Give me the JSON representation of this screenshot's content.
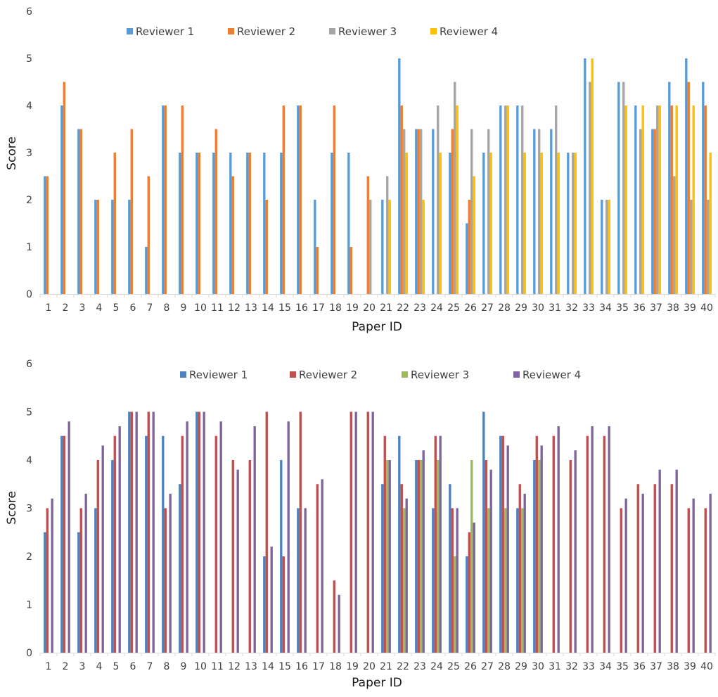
{
  "chart_data": [
    {
      "type": "bar",
      "xlabel": "Paper ID",
      "ylabel": "Score",
      "ylim": [
        0,
        6
      ],
      "yticks": [
        0,
        1,
        2,
        3,
        4,
        5,
        6
      ],
      "grid": false,
      "legend": "top",
      "categories": [
        "1",
        "2",
        "3",
        "4",
        "5",
        "6",
        "7",
        "8",
        "9",
        "10",
        "11",
        "12",
        "13",
        "14",
        "15",
        "16",
        "17",
        "18",
        "19",
        "20",
        "21",
        "22",
        "23",
        "24",
        "25",
        "26",
        "27",
        "28",
        "29",
        "30",
        "31",
        "32",
        "33",
        "34",
        "35",
        "36",
        "37",
        "38",
        "39",
        "40"
      ],
      "series": [
        {
          "name": "Reviewer 1",
          "color": "#5b9bd5",
          "values": [
            2.5,
            4,
            3.5,
            2,
            2,
            2,
            1,
            4,
            3,
            3,
            3,
            3,
            3,
            3,
            3,
            4,
            2,
            3,
            3,
            null,
            2,
            5,
            3.5,
            3.5,
            3,
            1.5,
            3,
            4,
            4,
            3.5,
            3.5,
            3,
            5,
            2,
            4.5,
            4,
            3.5,
            4.5,
            5,
            4.5
          ]
        },
        {
          "name": "Reviewer 2",
          "color": "#ed7d31",
          "values": [
            2.5,
            4.5,
            3.5,
            2,
            3,
            3.5,
            2.5,
            4,
            4,
            3,
            3.5,
            2.5,
            3,
            2,
            4,
            4,
            1,
            4,
            1,
            2.5,
            null,
            4,
            3.5,
            null,
            3.5,
            2,
            null,
            null,
            null,
            null,
            null,
            null,
            null,
            null,
            null,
            null,
            3.5,
            4,
            4.5,
            4
          ]
        },
        {
          "name": "Reviewer 3",
          "color": "#a5a5a5",
          "values": [
            null,
            null,
            null,
            null,
            null,
            null,
            null,
            null,
            null,
            null,
            null,
            null,
            null,
            null,
            null,
            null,
            null,
            null,
            null,
            2,
            2.5,
            3.5,
            3.5,
            4,
            4.5,
            3.5,
            3.5,
            4,
            4,
            3.5,
            4,
            3,
            4.5,
            2,
            4.5,
            3.5,
            4,
            2.5,
            2,
            2
          ]
        },
        {
          "name": "Reviewer 4",
          "color": "#ffc000",
          "values": [
            null,
            null,
            null,
            null,
            null,
            null,
            null,
            null,
            null,
            null,
            null,
            null,
            null,
            null,
            null,
            null,
            null,
            null,
            null,
            null,
            2,
            3,
            2,
            3,
            4,
            2.5,
            3,
            4,
            3,
            3,
            3,
            3,
            5,
            2,
            4,
            4,
            4,
            4,
            4,
            3
          ]
        }
      ]
    },
    {
      "type": "bar",
      "xlabel": "Paper ID",
      "ylabel": "Score",
      "ylim": [
        0,
        6
      ],
      "yticks": [
        0,
        1,
        2,
        3,
        4,
        5,
        6
      ],
      "grid": false,
      "legend": "top",
      "categories": [
        "1",
        "2",
        "3",
        "4",
        "5",
        "6",
        "7",
        "8",
        "9",
        "10",
        "11",
        "12",
        "13",
        "14",
        "15",
        "16",
        "17",
        "18",
        "19",
        "20",
        "21",
        "22",
        "23",
        "24",
        "25",
        "26",
        "27",
        "28",
        "29",
        "30",
        "31",
        "32",
        "33",
        "34",
        "35",
        "36",
        "37",
        "38",
        "39",
        "40"
      ],
      "series": [
        {
          "name": "Reviewer 1",
          "color": "#4f81bd",
          "values": [
            2.5,
            4.5,
            2.5,
            3,
            4,
            5,
            4.5,
            4.5,
            3.5,
            5,
            null,
            null,
            null,
            2,
            4,
            3,
            null,
            null,
            null,
            null,
            3.5,
            4.5,
            4,
            3,
            3.5,
            2,
            5,
            4.5,
            3,
            4,
            null,
            null,
            null,
            null,
            null,
            null,
            null,
            null,
            null,
            null
          ]
        },
        {
          "name": "Reviewer 2",
          "color": "#c0504d",
          "values": [
            3,
            4.5,
            3,
            4,
            4.5,
            5,
            5,
            3,
            4.5,
            5,
            4.5,
            4,
            4,
            5,
            2,
            5,
            3.5,
            1.5,
            5,
            5,
            4.5,
            3.5,
            4,
            4.5,
            3,
            2.5,
            4,
            4.5,
            3.5,
            4.5,
            4.5,
            4,
            4.5,
            4.5,
            3,
            3.5,
            3.5,
            3.5,
            3,
            3
          ]
        },
        {
          "name": "Reviewer 3",
          "color": "#9bbb59",
          "values": [
            null,
            null,
            null,
            null,
            null,
            null,
            null,
            null,
            null,
            null,
            null,
            null,
            null,
            null,
            null,
            null,
            null,
            null,
            null,
            null,
            4,
            3,
            4,
            4,
            2,
            4,
            3,
            3,
            3,
            4,
            null,
            null,
            null,
            null,
            null,
            null,
            null,
            null,
            null,
            null
          ]
        },
        {
          "name": "Reviewer 4",
          "color": "#8064a2",
          "values": [
            3.2,
            4.8,
            3.3,
            4.3,
            4.7,
            5,
            5,
            3.3,
            4.8,
            5,
            4.8,
            3.8,
            4.7,
            2.2,
            4.8,
            3,
            3.6,
            1.2,
            5,
            5,
            4,
            3.2,
            4.2,
            4.5,
            3,
            2.7,
            3.8,
            4.3,
            3.3,
            4.3,
            4.7,
            4.2,
            4.7,
            4.7,
            3.2,
            3.3,
            3.8,
            3.8,
            3.2,
            3.3
          ]
        }
      ]
    }
  ]
}
